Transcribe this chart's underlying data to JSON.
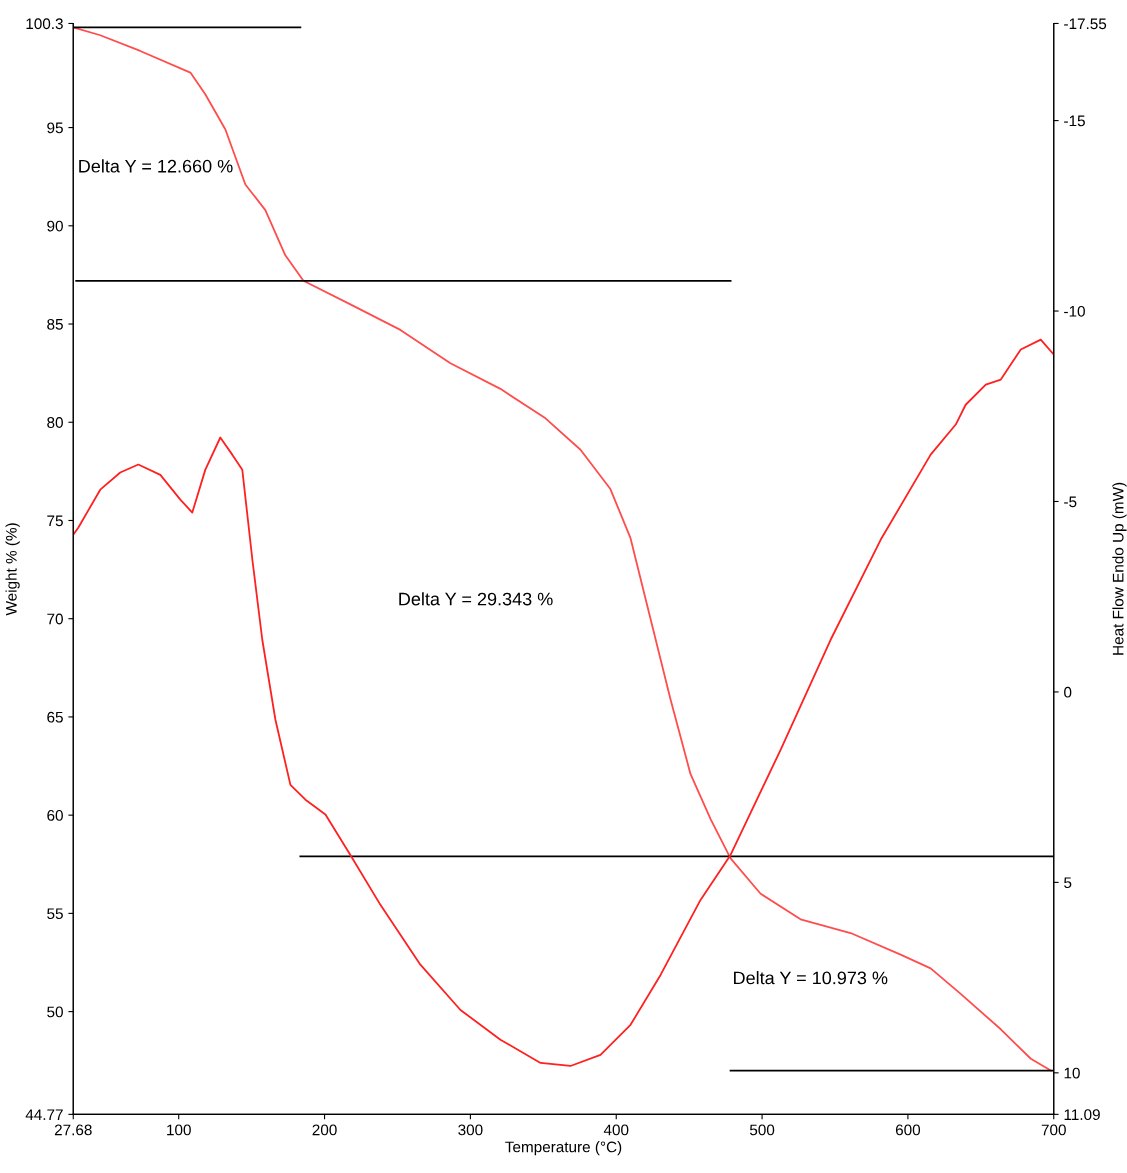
{
  "chart_data": {
    "type": "line",
    "xlabel": "Temperature (°C)",
    "ylabel": "Weight % (%)",
    "y2label": "Heat Flow Endo Up (mW)",
    "xlim": [
      27.68,
      700
    ],
    "xticks": [
      27.68,
      100,
      200,
      300,
      400,
      500,
      600,
      700
    ],
    "ylim": [
      44.77,
      100.3
    ],
    "yticks": [
      44.77,
      50,
      55,
      60,
      65,
      70,
      75,
      80,
      85,
      90,
      95,
      100.3
    ],
    "y2lim": [
      11.09,
      -17.55
    ],
    "y2ticks": [
      11.09,
      10,
      5,
      0,
      -5,
      -10,
      -15,
      -17.55
    ],
    "grid": false,
    "series": [
      {
        "color": "#ff4d4d",
        "x": [
          27.68,
          46.2,
          73.6,
          108,
          118.2,
          132,
          145.7,
          159.4,
          173.1,
          185.5,
          217.7,
          252,
          286.3,
          320.6,
          351.5,
          375.5,
          396,
          409.8,
          423.5,
          437.2,
          450.9,
          464.7,
          478.4,
          499,
          526.4,
          560.7,
          595,
          615.6,
          636.2,
          663.7,
          684.3,
          698
        ],
        "values": [
          100.1,
          99.7,
          98.9,
          97.8,
          96.7,
          94.9,
          92.1,
          90.8,
          88.5,
          87.2,
          86.0,
          84.7,
          83.0,
          81.7,
          80.2,
          78.6,
          76.6,
          74.1,
          70.0,
          65.9,
          62.1,
          59.8,
          57.8,
          56.0,
          54.7,
          54.0,
          52.9,
          52.2,
          50.9,
          49.1,
          47.6,
          47.0
        ]
      },
      {
        "color": "#ff2020",
        "axis": "y2",
        "x": [
          27.68,
          31.1,
          46.2,
          59.9,
          72.3,
          87.4,
          101.1,
          109.3,
          118.2,
          128.5,
          136.7,
          143.6,
          150.5,
          157.3,
          166.3,
          176.6,
          186.9,
          200.6,
          217.7,
          238.3,
          265.7,
          293.2,
          320.6,
          348.1,
          368.6,
          389.2,
          409.8,
          430.4,
          457.8,
          478.4,
          512.7,
          547,
          581.4,
          615.6,
          632.8,
          639.6,
          653.4,
          663.7,
          677.4,
          691.1,
          700
        ],
        "values": [
          -4.13,
          -4.31,
          -5.31,
          -5.76,
          -5.97,
          -5.7,
          -5.05,
          -4.71,
          -5.83,
          -6.68,
          -6.23,
          -5.83,
          -3.47,
          -1.37,
          0.73,
          2.44,
          2.83,
          3.22,
          4.28,
          5.59,
          7.16,
          8.35,
          9.13,
          9.74,
          9.82,
          9.53,
          8.74,
          7.43,
          5.46,
          4.28,
          1.52,
          -1.37,
          -4.0,
          -6.23,
          -7.02,
          -7.54,
          -8.07,
          -8.2,
          -8.99,
          -9.25,
          -8.86
        ]
      },
      {
        "color": "#000000",
        "x": [
          27.68,
          183.4
        ],
        "values": [
          100.1,
          100.1
        ]
      },
      {
        "color": "#000000",
        "x": [
          29.7,
          478.4
        ],
        "values": [
          87.2,
          87.2
        ]
      },
      {
        "color": "#000000",
        "x": [
          183.4,
          700
        ],
        "values": [
          57.9,
          57.9
        ]
      },
      {
        "color": "#000000",
        "x": [
          478.4,
          700
        ],
        "values": [
          47.0,
          47.0
        ]
      }
    ],
    "annotations": [
      "Delta Y = 12.660 %",
      "Delta Y = 29.343 %",
      "Delta Y = 10.973 %"
    ]
  }
}
